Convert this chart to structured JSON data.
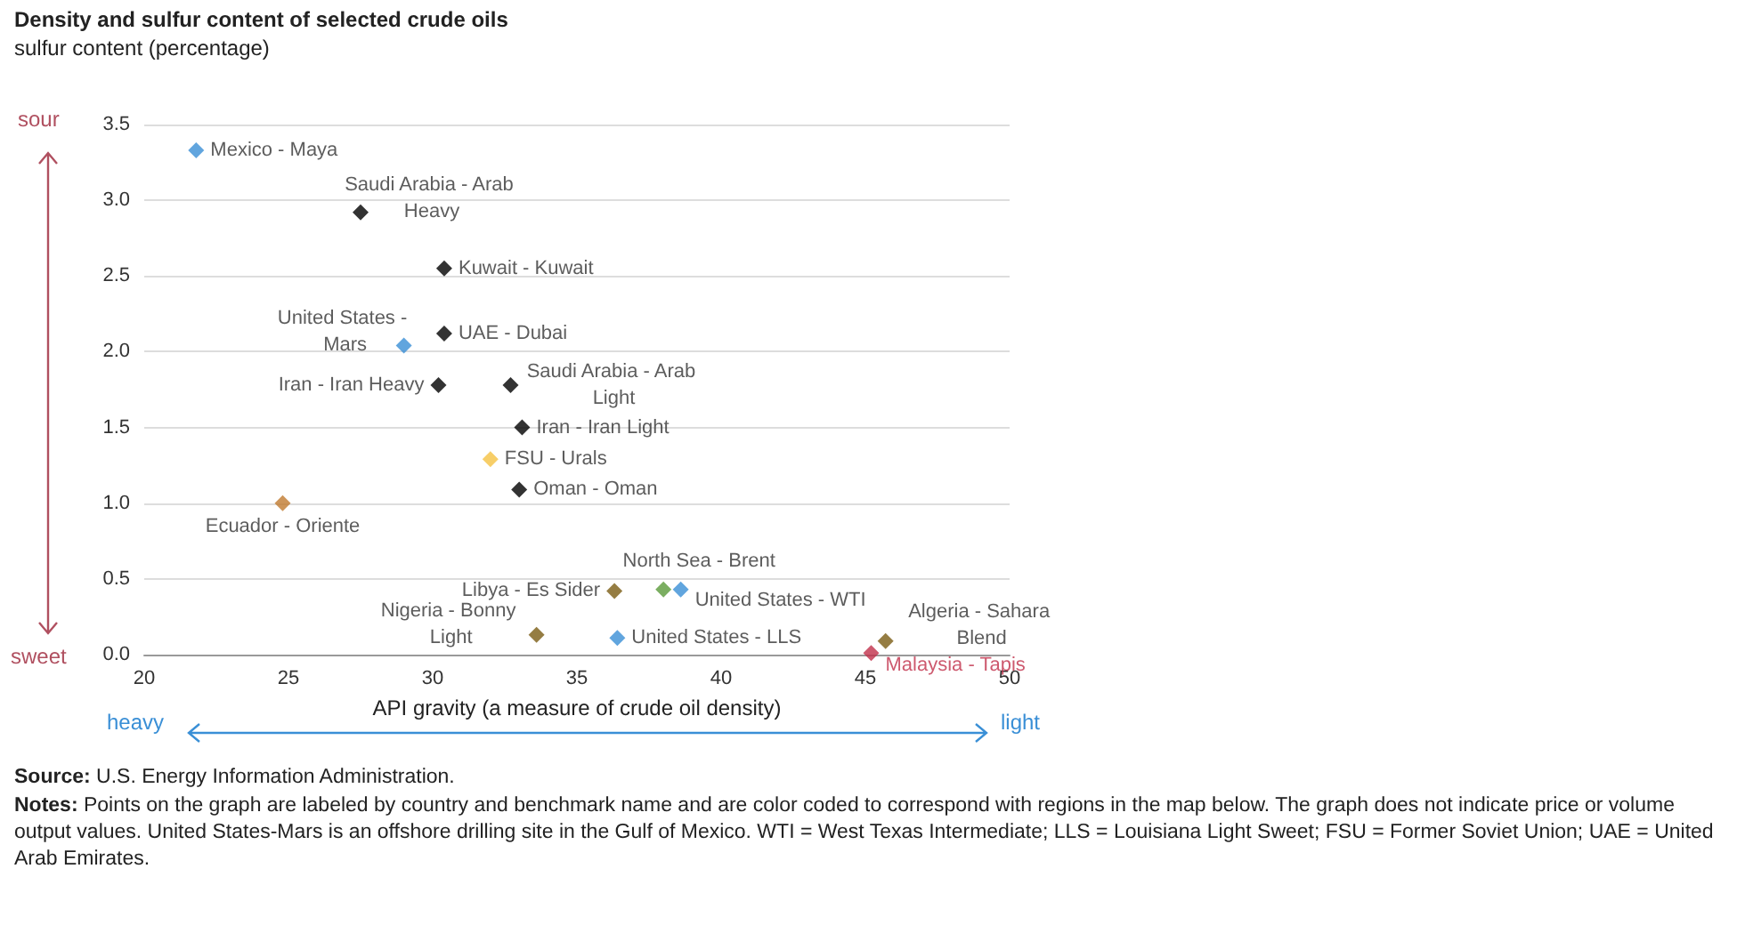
{
  "chart_data": {
    "type": "scatter",
    "title": "Density and sulfur content of selected crude oils",
    "xlabel": "API gravity (a measure of crude oil density)",
    "ylabel": "sulfur content (percentage)",
    "xlim": [
      20,
      50
    ],
    "xticks": [
      20,
      25,
      30,
      35,
      40,
      45,
      50
    ],
    "ylim": [
      0,
      3.5
    ],
    "yticks": [
      {
        "value": 0,
        "label": "0.0"
      },
      0.5,
      {
        "value": 1,
        "label": "1.0"
      },
      1.5,
      {
        "value": 2,
        "label": "2.0"
      },
      2.5,
      {
        "value": 3,
        "label": "3.0"
      },
      3.5
    ],
    "grid": "y",
    "legend": false,
    "marker": "diamond",
    "series": [
      {
        "name": "Mexico - Maya",
        "color": "#3a8fd6",
        "x": [
          21.8
        ],
        "values": [
          3.33
        ]
      },
      {
        "name": "Saudi Arabia - Arab Heavy",
        "color": "#000000",
        "x": [
          27.5
        ],
        "values": [
          2.92
        ]
      },
      {
        "name": "Kuwait - Kuwait",
        "color": "#000000",
        "x": [
          30.4
        ],
        "values": [
          2.55
        ]
      },
      {
        "name": "United States - Mars",
        "color": "#3a8fd6",
        "x": [
          29.0
        ],
        "values": [
          2.04
        ]
      },
      {
        "name": "UAE - Dubai",
        "color": "#000000",
        "x": [
          30.4
        ],
        "values": [
          2.12
        ]
      },
      {
        "name": "Iran - Iran Heavy",
        "color": "#000000",
        "x": [
          30.2
        ],
        "values": [
          1.78
        ]
      },
      {
        "name": "Saudi Arabia - Arab Light",
        "color": "#000000",
        "x": [
          32.7
        ],
        "values": [
          1.78
        ]
      },
      {
        "name": "Iran - Iran Light",
        "color": "#000000",
        "x": [
          33.1
        ],
        "values": [
          1.5
        ]
      },
      {
        "name": "FSU - Urals",
        "color": "#f5c242",
        "x": [
          32.0
        ],
        "values": [
          1.29
        ]
      },
      {
        "name": "Oman - Oman",
        "color": "#000000",
        "x": [
          33.0
        ],
        "values": [
          1.09
        ]
      },
      {
        "name": "Ecuador - Oriente",
        "color": "#c07a30",
        "x": [
          24.8
        ],
        "values": [
          1.0
        ]
      },
      {
        "name": "Libya - Es Sider",
        "color": "#7a5c14",
        "x": [
          36.3
        ],
        "values": [
          0.42
        ]
      },
      {
        "name": "North Sea - Brent",
        "color": "#5a9a3a",
        "x": [
          38.0
        ],
        "values": [
          0.43
        ]
      },
      {
        "name": "United States - WTI",
        "color": "#3a8fd6",
        "x": [
          38.6
        ],
        "values": [
          0.43
        ]
      },
      {
        "name": "Nigeria - Bonny Light",
        "color": "#7a5c14",
        "x": [
          33.6
        ],
        "values": [
          0.13
        ]
      },
      {
        "name": "United States - LLS",
        "color": "#3a8fd6",
        "x": [
          36.4
        ],
        "values": [
          0.11
        ]
      },
      {
        "name": "Algeria - Sahara Blend",
        "color": "#7a5c14",
        "x": [
          45.7
        ],
        "values": [
          0.09
        ]
      },
      {
        "name": "Malaysia - Tapis",
        "color": "#c0304a",
        "x": [
          45.2
        ],
        "values": [
          0.01
        ]
      }
    ],
    "annotations": [
      "sour",
      "sweet",
      "heavy",
      "light",
      "Source: U.S. Energy Information Administration.",
      "Notes: Points on the graph are labeled by country and benchmark name and are color coded to correspond with regions in the map below. The graph does not indicate price or volume output values. United States-Mars is an offshore drilling site in the Gulf of Mexico. WTI = West Texas Intermediate; LLS = Louisiana Light Sweet; FSU = Former Soviet Union; UAE = United Arab Emirates."
    ]
  }
}
